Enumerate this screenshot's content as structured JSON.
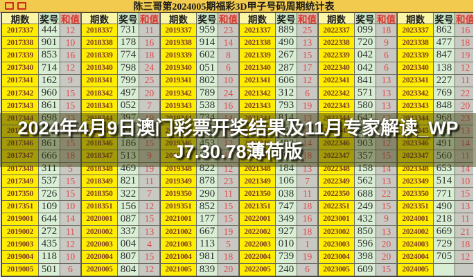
{
  "title": "陈三哥第2024005期福彩3D甲子号码周期统计表",
  "overlay": {
    "line1": "2024年4月9日澳门彩票开奖结果及11月专家解读_WP",
    "line2": "J7.30.78薄荷版"
  },
  "colors": {
    "title_strip": "#f2cb4e",
    "period_cell": "#ffee00",
    "number_cell": "#d9efd5",
    "sum_cell": "#c9c9c4",
    "sum_text": "#e04848",
    "period_text": "#7e3a24",
    "header_sum_bg": "#d7b9ab",
    "overlay_tint": "rgba(62,62,14,0.48)",
    "overlay_text": "#ffffff"
  },
  "table": {
    "headers": [
      "期数",
      "奖号",
      "和值"
    ],
    "groups": [
      {
        "rows": [
          [
            "2017337",
            "444",
            "12"
          ],
          [
            "2017338",
            "901",
            "10"
          ],
          [
            "2017339",
            "853",
            "16"
          ],
          [
            "2017340",
            "714",
            "12"
          ],
          [
            "2017341",
            "162",
            "9"
          ],
          [
            "2017342",
            "960",
            "15"
          ],
          [
            "2017343",
            "861",
            "15"
          ],
          [
            "2017344",
            "698",
            "23"
          ],
          [
            "2017345",
            "173",
            "11"
          ],
          [
            "2017346",
            "861",
            "15"
          ],
          [
            "2017347",
            "666",
            "18"
          ],
          [
            "2017348",
            "311",
            "5"
          ],
          [
            "2017349",
            "537",
            "15"
          ],
          [
            "2017350",
            "726",
            "15"
          ],
          [
            "2017351",
            "109",
            "10"
          ],
          [
            "2019001",
            "644",
            "14"
          ],
          [
            "2019002",
            "272",
            "11"
          ],
          [
            "2019003",
            "435",
            "12"
          ],
          [
            "2019004",
            "118",
            "10"
          ],
          [
            "2019005",
            "501",
            "6"
          ]
        ]
      },
      {
        "rows": [
          [
            "2018337",
            "731",
            "11"
          ],
          [
            "2018338",
            "178",
            "16"
          ],
          [
            "2018339",
            "774",
            "18"
          ],
          [
            "2018340",
            "798",
            "24"
          ],
          [
            "2018341",
            "799",
            "25"
          ],
          [
            "2018342",
            "497",
            "20"
          ],
          [
            "2018343",
            "052",
            "7"
          ],
          [
            "2018344",
            "397",
            "19"
          ],
          [
            "2018345",
            "092",
            "11"
          ],
          [
            "2018346",
            "186",
            "15"
          ],
          [
            "2018347",
            "513",
            "9"
          ],
          [
            "2018348",
            "469",
            "19"
          ],
          [
            "2018349",
            "821",
            "11"
          ],
          [
            "2018350",
            "322",
            "7"
          ],
          [
            "2018351",
            "156",
            "12"
          ],
          [
            "2020001",
            "087",
            "15"
          ],
          [
            "2020002",
            "337",
            "13"
          ],
          [
            "2020003",
            "004",
            "4"
          ],
          [
            "2020004",
            "807",
            "15"
          ],
          [
            "2020005",
            "804",
            "12"
          ]
        ]
      },
      {
        "rows": [
          [
            "2019337",
            "959",
            "23"
          ],
          [
            "2019338",
            "914",
            "14"
          ],
          [
            "2019339",
            "602",
            "8"
          ],
          [
            "2019340",
            "051",
            "6"
          ],
          [
            "2019341",
            "802",
            "10"
          ],
          [
            "2019342",
            "789",
            "24"
          ],
          [
            "2019343",
            "538",
            "16"
          ],
          [
            "2019344",
            "734",
            "14"
          ],
          [
            "2019345",
            "680",
            "14"
          ],
          [
            "2019346",
            "453",
            "12"
          ],
          [
            "2019347",
            "548",
            "17"
          ],
          [
            "2019348",
            "822",
            "12"
          ],
          [
            "2019349",
            "878",
            "23"
          ],
          [
            "2019350",
            "290",
            "11"
          ],
          [
            "2019351",
            "852",
            "15"
          ],
          [
            "2021001",
            "177",
            "15"
          ],
          [
            "2021002",
            "667",
            "19"
          ],
          [
            "2021003",
            "113",
            "5"
          ],
          [
            "2021004",
            "981",
            "18"
          ],
          [
            "2021005",
            "839",
            "20"
          ]
        ]
      },
      {
        "rows": [
          [
            "2021337",
            "889",
            "25"
          ],
          [
            "2021338",
            "490",
            "13"
          ],
          [
            "2021339",
            "267",
            "15"
          ],
          [
            "2021340",
            "287",
            "17"
          ],
          [
            "2021341",
            "606",
            "12"
          ],
          [
            "2021342",
            "312",
            "6"
          ],
          [
            "2021343",
            "793",
            "19"
          ],
          [
            "2021344",
            "814",
            "13"
          ],
          [
            "2021345",
            "445",
            "13"
          ],
          [
            "2021346",
            "482",
            "14"
          ],
          [
            "2021347",
            "891",
            "18"
          ],
          [
            "2021348",
            "184",
            "13"
          ],
          [
            "2021349",
            "106",
            "7"
          ],
          [
            "2021350",
            "038",
            "11"
          ],
          [
            "2021351",
            "747",
            "18"
          ],
          [
            "2022001",
            "349",
            "16"
          ],
          [
            "2022002",
            "927",
            "18"
          ],
          [
            "2022003",
            "010",
            "1"
          ],
          [
            "2022004",
            "739",
            "19"
          ],
          [
            "2022005",
            "240",
            "6"
          ]
        ]
      },
      {
        "rows": [
          [
            "2022337",
            "099",
            "18"
          ],
          [
            "2022338",
            "720",
            "9"
          ],
          [
            "2022339",
            "042",
            "6"
          ],
          [
            "2022340",
            "042",
            "6"
          ],
          [
            "2022341",
            "841",
            "13"
          ],
          [
            "2022342",
            "571",
            "13"
          ],
          [
            "2022343",
            "580",
            "13"
          ],
          [
            "2022344",
            "642",
            "12"
          ],
          [
            "2022345",
            "257",
            "14"
          ],
          [
            "2022346",
            "903",
            "12"
          ],
          [
            "2022347",
            "357",
            "15"
          ],
          [
            "2022348",
            "158",
            "14"
          ],
          [
            "2022349",
            "562",
            "13"
          ],
          [
            "2022350",
            "688",
            "22"
          ],
          [
            "2022351",
            "249",
            "15"
          ],
          [
            "2023001",
            "432",
            "9"
          ],
          [
            "2023002",
            "850",
            "13"
          ],
          [
            "2023003",
            "596",
            "20"
          ],
          [
            "2023004",
            "398",
            "20"
          ],
          [
            "2023005",
            "609",
            "15"
          ]
        ]
      },
      {
        "rows": [
          [
            "2023337",
            "862",
            "16"
          ],
          [
            "2023338",
            "477",
            "18"
          ],
          [
            "2023339",
            "847",
            "19"
          ],
          [
            "2023340",
            "138",
            "12"
          ],
          [
            "2023341",
            "227",
            "11"
          ],
          [
            "2023342",
            "769",
            "22"
          ],
          [
            "2023343",
            "848",
            "20"
          ],
          [
            "2023344",
            "968",
            "23"
          ],
          [
            "2023345",
            "436",
            "13"
          ],
          [
            "2023346",
            "491",
            "14"
          ],
          [
            "2023347",
            "560",
            "11"
          ],
          [
            "2023348",
            "653",
            "14"
          ],
          [
            "2023349",
            "514",
            "10"
          ],
          [
            "2023350",
            "771",
            "15"
          ],
          [
            "2023351",
            "490",
            "13"
          ],
          [
            "2024001",
            "218",
            "11"
          ],
          [
            "2024002",
            "669",
            "21"
          ],
          [
            "2024003",
            "729",
            "18"
          ],
          [
            "2024004",
            "705",
            "12"
          ],
          [
            "2024005",
            "",
            ""
          ]
        ]
      }
    ]
  }
}
